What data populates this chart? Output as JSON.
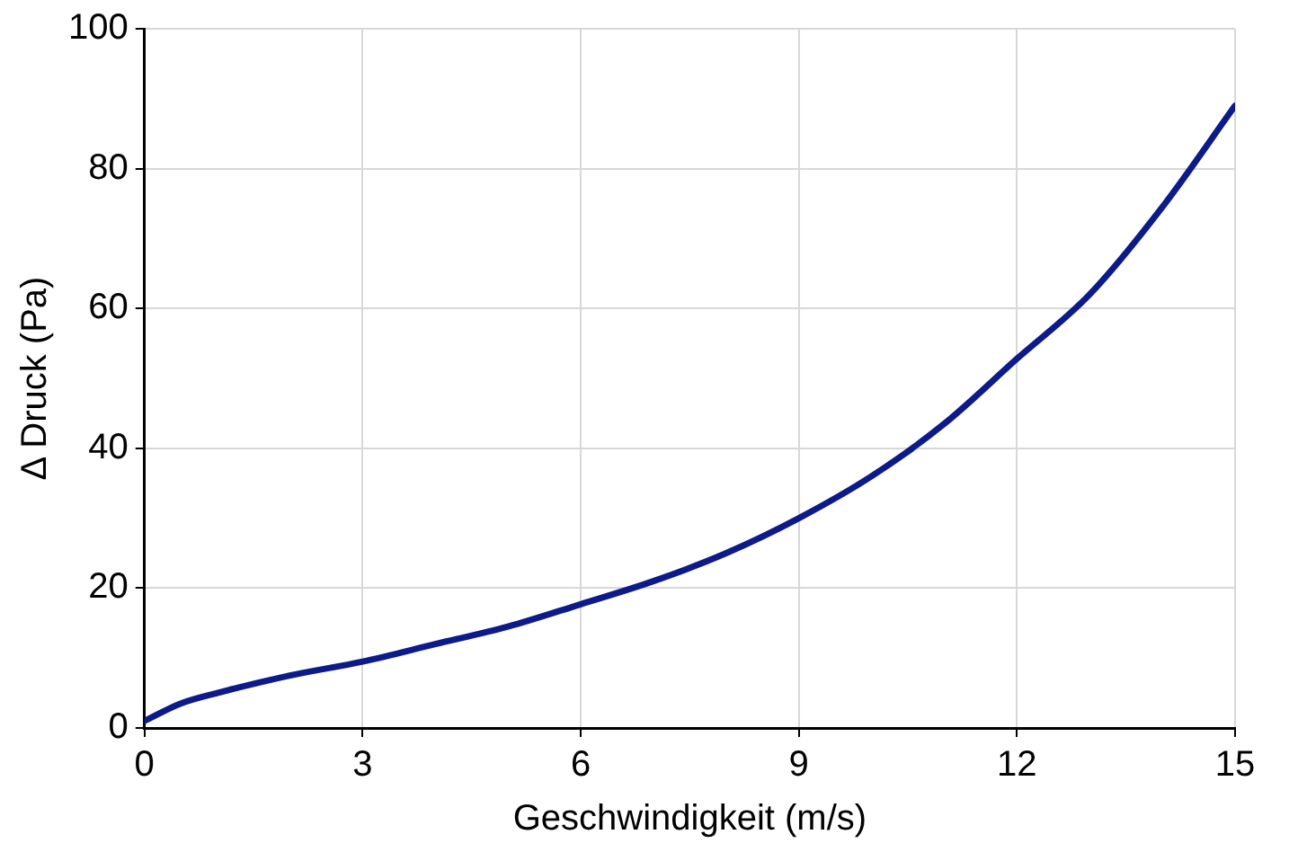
{
  "chart_data": {
    "type": "line",
    "xlabel": "Geschwindigkeit (m/s)",
    "ylabel": "Δ Druck (Pa)",
    "x": [
      0,
      0.5,
      1,
      2,
      3,
      4,
      5,
      6,
      7,
      8,
      9,
      10,
      11,
      12,
      13,
      14,
      15
    ],
    "series": [
      {
        "color": "#0d1a8a",
        "values": [
          1,
          3.5,
          5,
          7.5,
          9.5,
          12,
          14.5,
          17.7,
          21,
          25,
          30,
          36,
          43.5,
          52.8,
          62,
          74.5,
          89
        ]
      }
    ],
    "xlim": [
      0,
      15
    ],
    "xticks": [
      0,
      3,
      6,
      9,
      12,
      15
    ],
    "ylim": [
      0,
      100
    ],
    "yticks": [
      0,
      20,
      40,
      60,
      80,
      100
    ],
    "grid": true,
    "legend": false,
    "marker": "none",
    "line_style": "solid"
  }
}
